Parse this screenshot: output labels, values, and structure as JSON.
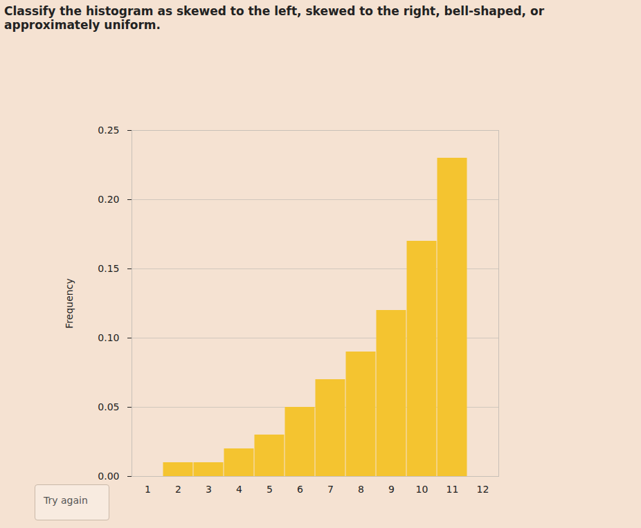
{
  "chart_data": {
    "type": "bar",
    "title": "Classify the histogram as skewed to the left, skewed to the right, bell-shaped, or approximately uniform.",
    "y_label": "Frequency",
    "annotations": [
      "Try again"
    ],
    "categories": [
      "1",
      "2",
      "3",
      "4",
      "5",
      "6",
      "7",
      "8",
      "9",
      "10",
      "11",
      "12"
    ],
    "values": [
      0,
      0.01,
      0.01,
      0.02,
      0.03,
      0.05,
      0.07,
      0.09,
      0.12,
      0.17,
      0.23,
      0
    ],
    "color": "#f4c430",
    "ylim": [
      0,
      0.25
    ],
    "yticks": [
      {
        "value": 0,
        "label": "0.00"
      },
      {
        "value": 0.05,
        "label": "0.05"
      },
      {
        "value": 0.1,
        "label": "0.10"
      },
      {
        "value": 0.15,
        "label": "0.15"
      },
      {
        "value": 0.2,
        "label": "0.20"
      },
      {
        "value": 0.25,
        "label": "0.25"
      }
    ],
    "grid": true
  }
}
